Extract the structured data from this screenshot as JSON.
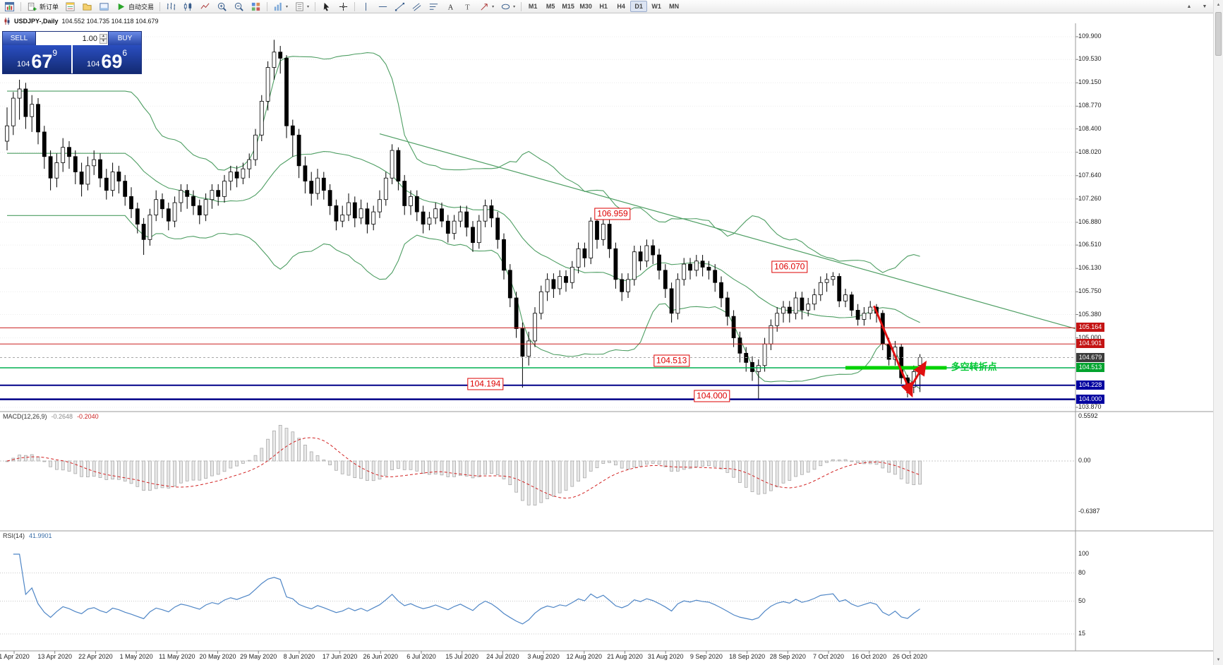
{
  "toolbar": {
    "new_order": "新订单",
    "auto_trading": "自动交易",
    "timeframes": [
      "M1",
      "M5",
      "M15",
      "M30",
      "H1",
      "H4",
      "D1",
      "W1",
      "MN"
    ],
    "active_timeframe": "D1",
    "icons": [
      "chart-window",
      "new-order",
      "market-watch",
      "navigator",
      "terminal",
      "auto-trading",
      "bars",
      "candlesticks",
      "line-chart",
      "zoom-in",
      "zoom-out",
      "tile-windows",
      "indicators",
      "templates",
      "cursor",
      "crosshair",
      "vertical-line",
      "horizontal-line",
      "trendline",
      "equidistant-channel",
      "fibonacci",
      "text",
      "text-label",
      "arrows",
      "shapes"
    ]
  },
  "chart": {
    "symbol_period": "USDJPY-,Daily",
    "ohlc": "104.552 104.735 104.118 104.679"
  },
  "trade_panel": {
    "sell_label": "SELL",
    "buy_label": "BUY",
    "volume": "1.00",
    "sell_small": "104",
    "sell_big": "67",
    "sell_sup": "9",
    "buy_small": "104",
    "buy_big": "69",
    "buy_sup": "6"
  },
  "price_scale": {
    "ticks": [
      "109.900",
      "109.530",
      "109.150",
      "108.770",
      "108.400",
      "108.020",
      "107.640",
      "107.260",
      "106.880",
      "106.510",
      "106.130",
      "105.750",
      "105.380",
      "105.000",
      "103.870"
    ],
    "highlights": [
      {
        "value": "105.164",
        "price": 105.164,
        "bg": "#c41414"
      },
      {
        "value": "104.901",
        "price": 104.901,
        "bg": "#c41414"
      },
      {
        "value": "104.679",
        "price": 104.679,
        "bg": "#3c3c3c"
      },
      {
        "value": "104.513",
        "price": 104.513,
        "bg": "#00a32e"
      },
      {
        "value": "104.228",
        "price": 104.228,
        "bg": "#0000a0"
      },
      {
        "value": "104.000",
        "price": 104.0,
        "bg": "#0000a0"
      }
    ]
  },
  "hlines": [
    {
      "price": 105.164,
      "color": "#cc2020",
      "w": 1,
      "dash": ""
    },
    {
      "price": 104.901,
      "color": "#cc2020",
      "w": 1,
      "dash": ""
    },
    {
      "price": 104.679,
      "color": "#a8a8a8",
      "w": 1,
      "dash": "3,3"
    },
    {
      "price": 104.513,
      "color": "#00b050",
      "w": 1.5,
      "dash": ""
    },
    {
      "price": 104.228,
      "color": "#000088",
      "w": 2,
      "dash": ""
    },
    {
      "price": 104.0,
      "color": "#000088",
      "w": 2.5,
      "dash": ""
    }
  ],
  "trendline": {
    "i1": 60,
    "p1": 108.32,
    "i2": 172,
    "p2": 105.15
  },
  "green_segment": {
    "price": 104.513,
    "i1": 135,
    "i2": 151.3,
    "w": 5
  },
  "arrow": {
    "w": 3,
    "segments": [
      [
        139.6,
        105.52,
        145.7,
        104.06
      ],
      [
        144.9,
        104.1,
        147.9,
        104.6
      ]
    ]
  },
  "callouts": [
    {
      "text": "106.959",
      "i": 97.5,
      "p": 107.02
    },
    {
      "text": "106.070",
      "i": 126,
      "p": 106.16
    },
    {
      "text": "104.513",
      "i": 107,
      "p": 104.63
    },
    {
      "text": "104.194",
      "i": 77,
      "p": 104.25
    },
    {
      "text": "104.000",
      "i": 113.5,
      "p": 104.05
    }
  ],
  "note": {
    "text": "多空转折点",
    "i": 152,
    "p": 104.56
  },
  "macd": {
    "label": "MACD(12,26,9)",
    "main": "-0.2648",
    "signal": "-0.2040",
    "scale": [
      "0.5592",
      "0.00",
      "-0.6387"
    ]
  },
  "rsi": {
    "label": "RSI(14)",
    "value": "41.9901",
    "scale": [
      {
        "v": 100,
        "t": "100"
      },
      {
        "v": 80,
        "t": "80"
      },
      {
        "v": 50,
        "t": "50"
      },
      {
        "v": 15,
        "t": "15"
      }
    ],
    "levels": [
      80,
      50,
      15
    ]
  },
  "dates": [
    "1 Apr 2020",
    "13 Apr 2020",
    "22 Apr 2020",
    "1 May 2020",
    "11 May 2020",
    "20 May 2020",
    "29 May 2020",
    "8 Jun 2020",
    "17 Jun 2020",
    "26 Jun 2020",
    "6 Jul 2020",
    "15 Jul 2020",
    "24 Jul 2020",
    "3 Aug 2020",
    "12 Aug 2020",
    "21 Aug 2020",
    "31 Aug 2020",
    "9 Sep 2020",
    "18 Sep 2020",
    "28 Sep 2020",
    "7 Oct 2020",
    "16 Oct 2020",
    "26 Oct 2020"
  ],
  "colors": {
    "bollinger": "#4e9e63",
    "trend_green": "#4e9e63",
    "support_green": "#00d200",
    "note_green": "#00c832",
    "resistance_red": "#cc2020",
    "arrow_red": "#e01010",
    "bull": "#ffffff",
    "bear": "#000000",
    "macd_hist": "#e8e8e8",
    "macd_hist_border": "#a6a6a6",
    "macd_signal": "#d22222",
    "rsi_line": "#4f86c6"
  },
  "chart_data": {
    "type": "candlestick",
    "symbol": "USDJPY",
    "timeframe": "Daily",
    "ohlc_current": {
      "open": 104.552,
      "high": 104.735,
      "low": 104.118,
      "close": 104.679
    },
    "indicators": [
      "Bollinger Bands(20,2)",
      "MACD(12,26,9)",
      "RSI(14)"
    ],
    "candles": [
      [
        108.2,
        108.75,
        108.05,
        108.45
      ],
      [
        108.45,
        109.0,
        108.3,
        108.9
      ],
      [
        108.9,
        109.2,
        108.55,
        109.05
      ],
      [
        109.05,
        109.15,
        108.4,
        108.6
      ],
      [
        108.6,
        108.95,
        108.35,
        108.8
      ],
      [
        108.8,
        108.9,
        108.15,
        108.35
      ],
      [
        108.35,
        108.45,
        107.75,
        107.95
      ],
      [
        107.95,
        108.05,
        107.4,
        107.6
      ],
      [
        107.6,
        108.0,
        107.45,
        107.85
      ],
      [
        107.85,
        108.25,
        107.7,
        108.1
      ],
      [
        108.1,
        108.2,
        107.75,
        107.95
      ],
      [
        107.95,
        108.05,
        107.5,
        107.7
      ],
      [
        107.7,
        107.85,
        107.3,
        107.5
      ],
      [
        107.5,
        107.95,
        107.4,
        107.8
      ],
      [
        107.8,
        108.05,
        107.65,
        107.9
      ],
      [
        107.9,
        108.0,
        107.45,
        107.6
      ],
      [
        107.6,
        107.75,
        107.25,
        107.4
      ],
      [
        107.4,
        107.85,
        107.3,
        107.7
      ],
      [
        107.7,
        107.8,
        107.35,
        107.55
      ],
      [
        107.55,
        107.65,
        107.15,
        107.3
      ],
      [
        107.3,
        107.45,
        106.95,
        107.1
      ],
      [
        107.1,
        107.2,
        106.7,
        106.85
      ],
      [
        106.85,
        106.95,
        106.35,
        106.6
      ],
      [
        106.6,
        107.1,
        106.5,
        107.0
      ],
      [
        107.0,
        107.4,
        106.9,
        107.25
      ],
      [
        107.25,
        107.35,
        106.95,
        107.1
      ],
      [
        107.1,
        107.2,
        106.75,
        106.9
      ],
      [
        106.9,
        107.3,
        106.8,
        107.2
      ],
      [
        107.2,
        107.5,
        107.05,
        107.4
      ],
      [
        107.4,
        107.5,
        107.1,
        107.3
      ],
      [
        107.3,
        107.4,
        107.0,
        107.15
      ],
      [
        107.15,
        107.25,
        106.85,
        107.0
      ],
      [
        107.0,
        107.35,
        106.9,
        107.25
      ],
      [
        107.25,
        107.5,
        107.1,
        107.4
      ],
      [
        107.4,
        107.5,
        107.15,
        107.3
      ],
      [
        107.3,
        107.65,
        107.2,
        107.55
      ],
      [
        107.55,
        107.8,
        107.4,
        107.7
      ],
      [
        107.7,
        107.8,
        107.45,
        107.6
      ],
      [
        107.6,
        107.85,
        107.5,
        107.75
      ],
      [
        107.75,
        108.0,
        107.6,
        107.9
      ],
      [
        107.9,
        108.4,
        107.8,
        108.3
      ],
      [
        108.3,
        108.95,
        108.2,
        108.85
      ],
      [
        108.85,
        109.5,
        108.7,
        109.4
      ],
      [
        109.4,
        109.85,
        109.2,
        109.65
      ],
      [
        109.65,
        109.75,
        109.3,
        109.55
      ],
      [
        109.55,
        109.6,
        108.25,
        108.45
      ],
      [
        108.45,
        108.55,
        107.95,
        108.3
      ],
      [
        108.3,
        108.4,
        107.6,
        107.8
      ],
      [
        107.8,
        107.95,
        107.35,
        107.55
      ],
      [
        107.55,
        107.7,
        107.15,
        107.35
      ],
      [
        107.35,
        107.75,
        107.25,
        107.6
      ],
      [
        107.6,
        107.7,
        107.25,
        107.4
      ],
      [
        107.4,
        107.5,
        107.0,
        107.15
      ],
      [
        107.15,
        107.25,
        106.75,
        106.9
      ],
      [
        106.9,
        107.15,
        106.8,
        107.0
      ],
      [
        107.0,
        107.35,
        106.9,
        107.2
      ],
      [
        107.2,
        107.3,
        106.8,
        106.95
      ],
      [
        106.95,
        107.25,
        106.85,
        107.1
      ],
      [
        107.1,
        107.2,
        106.7,
        106.85
      ],
      [
        106.85,
        107.15,
        106.75,
        107.05
      ],
      [
        107.05,
        107.4,
        106.95,
        107.25
      ],
      [
        107.25,
        107.7,
        107.15,
        107.6
      ],
      [
        107.6,
        108.15,
        107.5,
        108.05
      ],
      [
        108.05,
        108.1,
        107.4,
        107.55
      ],
      [
        107.55,
        107.65,
        107.0,
        107.15
      ],
      [
        107.15,
        107.4,
        107.0,
        107.3
      ],
      [
        107.3,
        107.4,
        106.9,
        107.05
      ],
      [
        107.05,
        107.15,
        106.7,
        106.85
      ],
      [
        106.85,
        107.05,
        106.75,
        106.95
      ],
      [
        106.95,
        107.2,
        106.85,
        107.1
      ],
      [
        107.1,
        107.2,
        106.8,
        106.9
      ],
      [
        106.9,
        107.0,
        106.55,
        106.7
      ],
      [
        106.7,
        107.0,
        106.6,
        106.9
      ],
      [
        106.9,
        107.15,
        106.8,
        107.05
      ],
      [
        107.05,
        107.15,
        106.65,
        106.8
      ],
      [
        106.8,
        106.9,
        106.4,
        106.55
      ],
      [
        106.55,
        107.0,
        106.45,
        106.9
      ],
      [
        106.9,
        107.25,
        106.8,
        107.15
      ],
      [
        107.15,
        107.25,
        106.8,
        106.95
      ],
      [
        106.95,
        107.05,
        106.45,
        106.6
      ],
      [
        106.6,
        106.7,
        105.95,
        106.1
      ],
      [
        106.1,
        106.2,
        105.5,
        105.65
      ],
      [
        105.65,
        105.75,
        105.0,
        105.15
      ],
      [
        105.15,
        105.25,
        104.19,
        104.7
      ],
      [
        104.7,
        105.1,
        104.55,
        104.95
      ],
      [
        104.95,
        105.5,
        104.85,
        105.4
      ],
      [
        105.4,
        105.85,
        105.3,
        105.75
      ],
      [
        105.75,
        106.05,
        105.6,
        105.95
      ],
      [
        105.95,
        106.05,
        105.65,
        105.8
      ],
      [
        105.8,
        106.1,
        105.7,
        106.0
      ],
      [
        106.0,
        106.1,
        105.75,
        105.9
      ],
      [
        105.9,
        106.25,
        105.8,
        106.15
      ],
      [
        106.15,
        106.55,
        106.05,
        106.45
      ],
      [
        106.45,
        106.55,
        106.15,
        106.3
      ],
      [
        106.3,
        106.96,
        106.2,
        106.9
      ],
      [
        106.9,
        107.0,
        106.45,
        106.6
      ],
      [
        106.6,
        106.95,
        106.5,
        106.85
      ],
      [
        106.85,
        106.95,
        106.3,
        106.45
      ],
      [
        106.45,
        106.55,
        105.8,
        105.95
      ],
      [
        105.95,
        106.05,
        105.6,
        105.75
      ],
      [
        105.75,
        106.05,
        105.65,
        105.95
      ],
      [
        105.95,
        106.5,
        105.85,
        106.4
      ],
      [
        106.4,
        106.5,
        106.1,
        106.25
      ],
      [
        106.25,
        106.6,
        106.15,
        106.5
      ],
      [
        106.5,
        106.6,
        106.2,
        106.35
      ],
      [
        106.35,
        106.45,
        105.95,
        106.1
      ],
      [
        106.1,
        106.2,
        105.65,
        105.8
      ],
      [
        105.8,
        105.9,
        105.25,
        105.4
      ],
      [
        105.4,
        106.05,
        105.3,
        105.95
      ],
      [
        105.95,
        106.3,
        105.85,
        106.2
      ],
      [
        106.2,
        106.3,
        105.95,
        106.1
      ],
      [
        106.1,
        106.35,
        106.0,
        106.25
      ],
      [
        106.25,
        106.35,
        106.0,
        106.15
      ],
      [
        106.15,
        106.25,
        105.95,
        106.1
      ],
      [
        106.1,
        106.2,
        105.75,
        105.9
      ],
      [
        105.9,
        106.0,
        105.5,
        105.65
      ],
      [
        105.65,
        105.75,
        105.2,
        105.35
      ],
      [
        105.35,
        105.45,
        104.85,
        105.0
      ],
      [
        105.0,
        105.1,
        104.6,
        104.75
      ],
      [
        104.75,
        104.85,
        104.45,
        104.6
      ],
      [
        104.6,
        104.7,
        104.3,
        104.45
      ],
      [
        104.45,
        104.65,
        104.0,
        104.55
      ],
      [
        104.55,
        105.0,
        104.45,
        104.9
      ],
      [
        104.9,
        105.3,
        104.8,
        105.2
      ],
      [
        105.2,
        105.5,
        105.1,
        105.4
      ],
      [
        105.4,
        105.6,
        105.25,
        105.5
      ],
      [
        105.5,
        105.6,
        105.25,
        105.4
      ],
      [
        105.4,
        105.75,
        105.3,
        105.65
      ],
      [
        105.65,
        105.75,
        105.3,
        105.45
      ],
      [
        105.45,
        105.65,
        105.35,
        105.55
      ],
      [
        105.55,
        105.8,
        105.45,
        105.7
      ],
      [
        105.7,
        106.0,
        105.6,
        105.9
      ],
      [
        105.9,
        106.05,
        105.75,
        105.95
      ],
      [
        105.95,
        106.07,
        105.85,
        106.0
      ],
      [
        106.0,
        106.05,
        105.5,
        105.6
      ],
      [
        105.6,
        105.8,
        105.5,
        105.7
      ],
      [
        105.7,
        105.75,
        105.35,
        105.45
      ],
      [
        105.45,
        105.55,
        105.2,
        105.3
      ],
      [
        105.3,
        105.5,
        105.2,
        105.4
      ],
      [
        105.4,
        105.6,
        105.3,
        105.5
      ],
      [
        105.5,
        105.55,
        105.25,
        105.4
      ],
      [
        105.4,
        105.45,
        104.8,
        104.9
      ],
      [
        104.9,
        105.0,
        104.55,
        104.65
      ],
      [
        104.65,
        104.95,
        104.55,
        104.85
      ],
      [
        104.85,
        104.9,
        104.25,
        104.35
      ],
      [
        104.35,
        104.4,
        104.03,
        104.2
      ],
      [
        104.2,
        104.55,
        104.1,
        104.45
      ],
      [
        104.552,
        104.735,
        104.118,
        104.679
      ]
    ]
  }
}
